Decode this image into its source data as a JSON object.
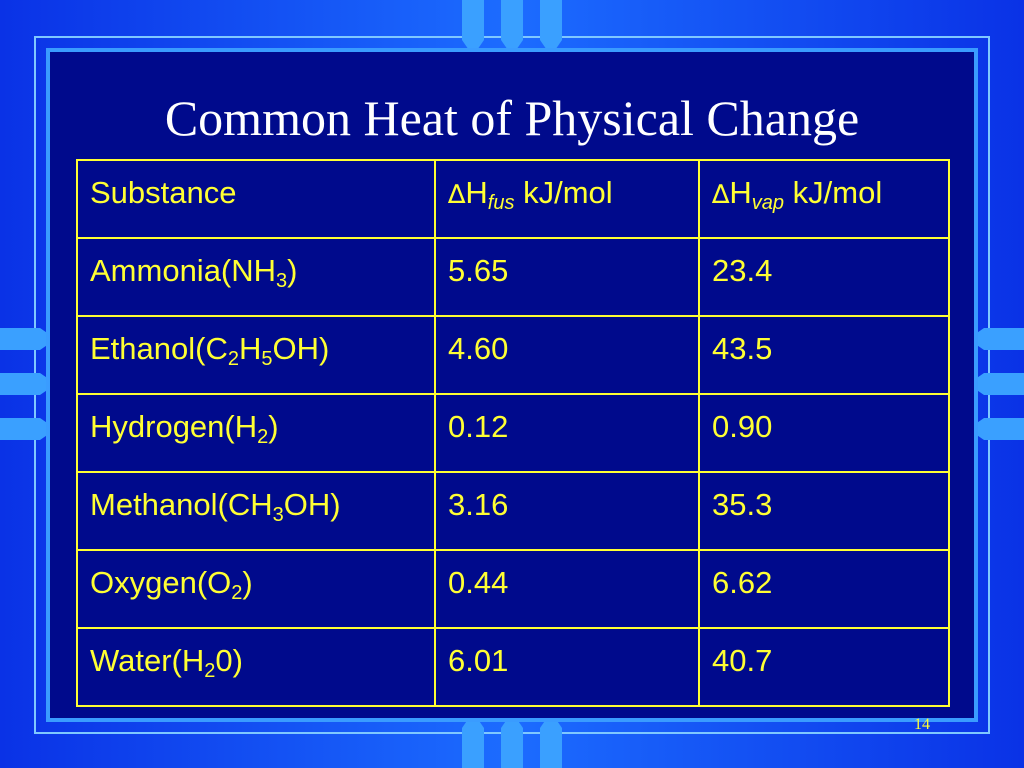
{
  "slide": {
    "title": "Common Heat of Physical Change",
    "page_number": "14"
  },
  "table": {
    "header": {
      "substance": "Substance",
      "delta_symbol": "∆",
      "fus": {
        "base": "H",
        "sub": "fus",
        "unit": " kJ/mol"
      },
      "vap": {
        "base": "H",
        "sub": "vap",
        "unit": " kJ/mol"
      }
    },
    "rows": [
      {
        "name": [
          "Ammonia(NH",
          "3",
          ")"
        ],
        "fus": "5.65",
        "vap": "23.4"
      },
      {
        "name": [
          "Ethanol(C",
          "2",
          "H",
          "5",
          "OH)"
        ],
        "fus": "4.60",
        "vap": "43.5"
      },
      {
        "name": [
          "Hydrogen(H",
          "2",
          ")"
        ],
        "fus": "0.12",
        "vap": "0.90"
      },
      {
        "name": [
          "Methanol(CH",
          "3",
          "OH)"
        ],
        "fus": "3.16",
        "vap": "35.3"
      },
      {
        "name": [
          "Oxygen(O",
          "2",
          ")"
        ],
        "fus": "0.44",
        "vap": "6.62"
      },
      {
        "name": [
          "Water(H",
          "2",
          "0)"
        ],
        "fus": "6.01",
        "vap": "40.7"
      }
    ]
  },
  "colors": {
    "background": "#1c6cff",
    "panel": "#000a8c",
    "title_text": "#ffffff",
    "table_text": "#ffff33",
    "table_border": "#ffff33"
  }
}
